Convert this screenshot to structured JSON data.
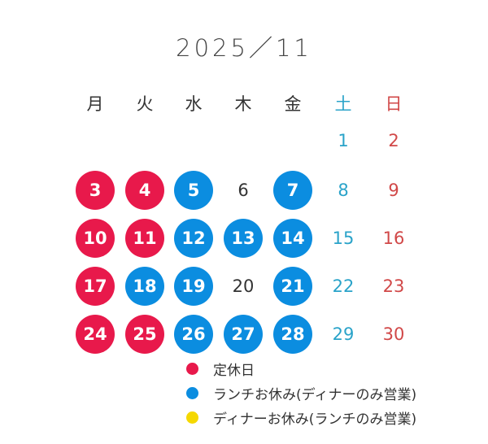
{
  "title": "2025／11",
  "weekdays": [
    {
      "label": "月",
      "color": "#333333"
    },
    {
      "label": "火",
      "color": "#333333"
    },
    {
      "label": "水",
      "color": "#333333"
    },
    {
      "label": "木",
      "color": "#333333"
    },
    {
      "label": "金",
      "color": "#333333"
    },
    {
      "label": "土",
      "color": "#2aa3c9"
    },
    {
      "label": "日",
      "color": "#d14848"
    }
  ],
  "first_weekday_index": 5,
  "days": [
    {
      "day": "1",
      "status": "open"
    },
    {
      "day": "2",
      "status": "open"
    },
    {
      "day": "3",
      "status": "closed"
    },
    {
      "day": "4",
      "status": "closed"
    },
    {
      "day": "5",
      "status": "lunch_closed"
    },
    {
      "day": "6",
      "status": "open"
    },
    {
      "day": "7",
      "status": "lunch_closed"
    },
    {
      "day": "8",
      "status": "open"
    },
    {
      "day": "9",
      "status": "open"
    },
    {
      "day": "10",
      "status": "closed"
    },
    {
      "day": "11",
      "status": "closed"
    },
    {
      "day": "12",
      "status": "lunch_closed"
    },
    {
      "day": "13",
      "status": "lunch_closed"
    },
    {
      "day": "14",
      "status": "lunch_closed"
    },
    {
      "day": "15",
      "status": "open"
    },
    {
      "day": "16",
      "status": "open"
    },
    {
      "day": "17",
      "status": "closed"
    },
    {
      "day": "18",
      "status": "lunch_closed"
    },
    {
      "day": "19",
      "status": "lunch_closed"
    },
    {
      "day": "20",
      "status": "open"
    },
    {
      "day": "21",
      "status": "lunch_closed"
    },
    {
      "day": "22",
      "status": "open"
    },
    {
      "day": "23",
      "status": "open"
    },
    {
      "day": "24",
      "status": "closed"
    },
    {
      "day": "25",
      "status": "closed"
    },
    {
      "day": "26",
      "status": "lunch_closed"
    },
    {
      "day": "27",
      "status": "lunch_closed"
    },
    {
      "day": "28",
      "status": "lunch_closed"
    },
    {
      "day": "29",
      "status": "open"
    },
    {
      "day": "30",
      "status": "open"
    }
  ],
  "legend": [
    {
      "label": "定休日",
      "color": "#e8194b"
    },
    {
      "label": "ランチお休み(ディナーのみ営業)",
      "color": "#0b8de0"
    },
    {
      "label": "ディナーお休み(ランチのみ営業)",
      "color": "#f5d800"
    }
  ]
}
